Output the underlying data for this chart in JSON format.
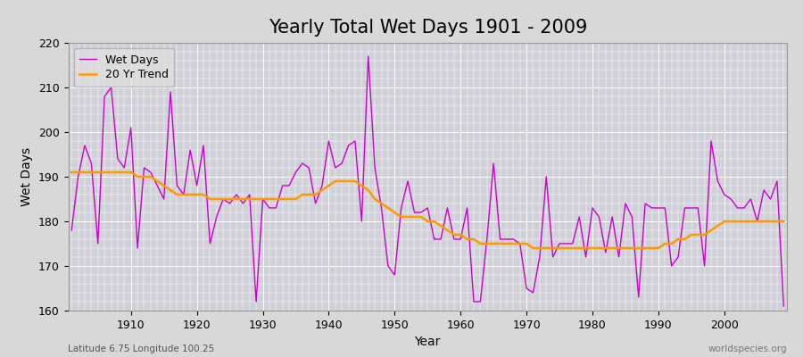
{
  "title": "Yearly Total Wet Days 1901 - 2009",
  "xlabel": "Year",
  "ylabel": "Wet Days",
  "subtitle": "Latitude 6.75 Longitude 100.25",
  "watermark": "worldspecies.org",
  "years": [
    1901,
    1902,
    1903,
    1904,
    1905,
    1906,
    1907,
    1908,
    1909,
    1910,
    1911,
    1912,
    1913,
    1914,
    1915,
    1916,
    1917,
    1918,
    1919,
    1920,
    1921,
    1922,
    1923,
    1924,
    1925,
    1926,
    1927,
    1928,
    1929,
    1930,
    1931,
    1932,
    1933,
    1934,
    1935,
    1936,
    1937,
    1938,
    1939,
    1940,
    1941,
    1942,
    1943,
    1944,
    1945,
    1946,
    1947,
    1948,
    1949,
    1950,
    1951,
    1952,
    1953,
    1954,
    1955,
    1956,
    1957,
    1958,
    1959,
    1960,
    1961,
    1962,
    1963,
    1964,
    1965,
    1966,
    1967,
    1968,
    1969,
    1970,
    1971,
    1972,
    1973,
    1974,
    1975,
    1976,
    1977,
    1978,
    1979,
    1980,
    1981,
    1982,
    1983,
    1984,
    1985,
    1986,
    1987,
    1988,
    1989,
    1990,
    1991,
    1992,
    1993,
    1994,
    1995,
    1996,
    1997,
    1998,
    1999,
    2000,
    2001,
    2002,
    2003,
    2004,
    2005,
    2006,
    2007,
    2008,
    2009
  ],
  "wet_days": [
    178,
    190,
    197,
    193,
    175,
    208,
    210,
    194,
    192,
    201,
    174,
    192,
    191,
    188,
    185,
    209,
    188,
    186,
    196,
    188,
    197,
    175,
    181,
    185,
    184,
    186,
    184,
    186,
    162,
    185,
    183,
    183,
    188,
    188,
    191,
    193,
    192,
    184,
    188,
    198,
    192,
    193,
    197,
    198,
    180,
    217,
    192,
    183,
    170,
    168,
    183,
    189,
    182,
    182,
    183,
    176,
    176,
    183,
    176,
    176,
    183,
    162,
    162,
    176,
    193,
    176,
    176,
    176,
    175,
    165,
    164,
    172,
    190,
    172,
    175,
    175,
    175,
    181,
    172,
    183,
    181,
    173,
    181,
    172,
    184,
    181,
    163,
    184,
    183,
    183,
    183,
    170,
    172,
    183,
    183,
    183,
    170,
    198,
    189,
    186,
    185,
    183,
    183,
    185,
    180,
    187,
    185,
    189,
    161
  ],
  "trend": [
    191,
    191,
    191,
    191,
    191,
    191,
    191,
    191,
    191,
    191,
    190,
    190,
    190,
    189,
    188,
    187,
    186,
    186,
    186,
    186,
    186,
    185,
    185,
    185,
    185,
    185,
    185,
    185,
    185,
    185,
    185,
    185,
    185,
    185,
    185,
    186,
    186,
    186,
    187,
    188,
    189,
    189,
    189,
    189,
    188,
    187,
    185,
    184,
    183,
    182,
    181,
    181,
    181,
    181,
    180,
    180,
    179,
    178,
    177,
    177,
    176,
    176,
    175,
    175,
    175,
    175,
    175,
    175,
    175,
    175,
    174,
    174,
    174,
    174,
    174,
    174,
    174,
    174,
    174,
    174,
    174,
    174,
    174,
    174,
    174,
    174,
    174,
    174,
    174,
    174,
    175,
    175,
    176,
    176,
    177,
    177,
    177,
    178,
    179,
    180,
    180,
    180,
    180,
    180,
    180,
    180,
    180,
    180,
    180
  ],
  "line_color": "#cc00cc",
  "trend_color": "#ff9900",
  "bg_color": "#d8d8d8",
  "plot_bg_color": "#d0d0d8",
  "ylim": [
    160,
    220
  ],
  "yticks": [
    160,
    170,
    180,
    190,
    200,
    210,
    220
  ],
  "grid_color": "#ffffff",
  "title_fontsize": 15,
  "axis_fontsize": 10,
  "label_fontsize": 9,
  "legend_fontsize": 9
}
